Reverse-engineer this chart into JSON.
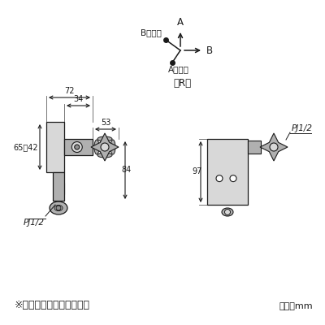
{
  "bg_color": "#ffffff",
  "line_color": "#1a1a1a",
  "gray_fill": "#c8c8c8",
  "gray_mid": "#b0b0b0",
  "gray_light": "#d8d8d8",
  "gray_dark": "#909090",
  "title_note": "※寸法図はＬタイプです。",
  "unit_note": "単位：mm",
  "label_R": "（R）",
  "label_A": "A",
  "label_B": "B",
  "label_Bvalve": "Bバルブ",
  "label_Avalve": "Aバルブ",
  "label_PJ12": "PJ1/2",
  "dim_72": "72",
  "dim_34": "34",
  "dim_53": "53",
  "dim_65_42": "65～42",
  "dim_84": "84",
  "dim_97": "97",
  "font_name": "IPAGothic"
}
